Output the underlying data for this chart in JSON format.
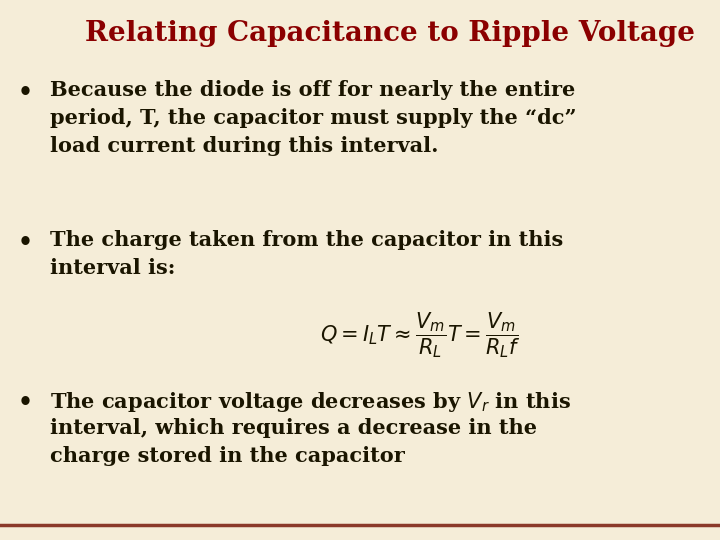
{
  "title": "Relating Capacitance to Ripple Voltage",
  "title_color": "#8B0000",
  "background_color": "#F5EDD8",
  "text_color": "#1A1500",
  "bullet1_line1": "Because the diode is off for nearly the entire",
  "bullet1_line2": "period, T, the capacitor must supply the “dc”",
  "bullet1_line3": "load current during this interval.",
  "bullet2_line1": "The charge taken from the capacitor in this",
  "bullet2_line2": "interval is:",
  "formula": "$Q = I_L T \\approx \\dfrac{V_m}{R_L} T = \\dfrac{V_m}{R_L f}$",
  "bullet3_line1": "The capacitor voltage decreases by $V_r$ in this",
  "bullet3_line2": "interval, which requires a decrease in the",
  "bullet3_line3": "charge stored in the capacitor",
  "bottom_line_color": "#8B3A2A",
  "title_fontsize": 20,
  "body_fontsize": 15,
  "formula_fontsize": 15,
  "figsize": [
    7.2,
    5.4
  ],
  "dpi": 100
}
